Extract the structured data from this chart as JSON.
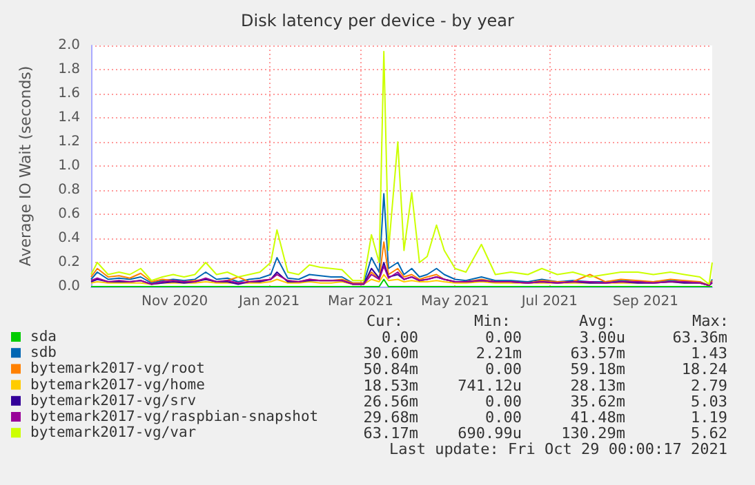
{
  "chart_data": {
    "type": "line",
    "title": "Disk latency per device - by year",
    "ylabel": "Average IO Wait (seconds)",
    "x": [
      "2020-09-22",
      "2020-09-26",
      "2020-10-03",
      "2020-10-10",
      "2020-10-17",
      "2020-10-24",
      "2020-10-31",
      "2020-11-07",
      "2020-11-14",
      "2020-11-21",
      "2020-11-28",
      "2020-12-05",
      "2020-12-12",
      "2020-12-19",
      "2020-12-26",
      "2021-01-02",
      "2021-01-09",
      "2021-01-16",
      "2021-01-20",
      "2021-01-27",
      "2021-02-03",
      "2021-02-10",
      "2021-02-17",
      "2021-02-24",
      "2021-03-03",
      "2021-03-10",
      "2021-03-17",
      "2021-03-22",
      "2021-03-27",
      "2021-03-30",
      "2021-04-02",
      "2021-04-08",
      "2021-04-12",
      "2021-04-17",
      "2021-04-22",
      "2021-04-27",
      "2021-05-03",
      "2021-05-08",
      "2021-05-15",
      "2021-05-22",
      "2021-06-01",
      "2021-06-10",
      "2021-06-20",
      "2021-07-01",
      "2021-07-10",
      "2021-07-20",
      "2021-07-30",
      "2021-08-10",
      "2021-08-20",
      "2021-08-30",
      "2021-09-10",
      "2021-09-20",
      "2021-10-01",
      "2021-10-10",
      "2021-10-20",
      "2021-10-26",
      "2021-10-28"
    ],
    "series": [
      {
        "name": "sda",
        "color": "#00cc00",
        "values": [
          0,
          0,
          0,
          0,
          0,
          0,
          0,
          0,
          0,
          0,
          0,
          0,
          0,
          0,
          0,
          0,
          0,
          0,
          0,
          0,
          0,
          0,
          0,
          0,
          0,
          0,
          0,
          0,
          0,
          0.06,
          0,
          0,
          0,
          0,
          0,
          0,
          0,
          0,
          0,
          0,
          0,
          0,
          0,
          0,
          0,
          0,
          0,
          0,
          0,
          0,
          0,
          0,
          0,
          0,
          0,
          0,
          0
        ]
      },
      {
        "name": "sdb",
        "color": "#0066b3",
        "values": [
          0.06,
          0.12,
          0.06,
          0.07,
          0.06,
          0.08,
          0.03,
          0.05,
          0.06,
          0.05,
          0.06,
          0.12,
          0.06,
          0.07,
          0.04,
          0.06,
          0.07,
          0.1,
          0.24,
          0.07,
          0.06,
          0.1,
          0.09,
          0.08,
          0.08,
          0.03,
          0.03,
          0.24,
          0.12,
          0.77,
          0.15,
          0.2,
          0.1,
          0.15,
          0.08,
          0.1,
          0.15,
          0.1,
          0.06,
          0.05,
          0.08,
          0.05,
          0.05,
          0.04,
          0.06,
          0.04,
          0.05,
          0.04,
          0.04,
          0.05,
          0.04,
          0.04,
          0.05,
          0.04,
          0.04,
          0.01,
          0.06
        ]
      },
      {
        "name": "bytemark2017-vg/root",
        "color": "#ff8000",
        "values": [
          0.08,
          0.15,
          0.08,
          0.09,
          0.07,
          0.11,
          0.04,
          0.06,
          0.05,
          0.04,
          0.05,
          0.06,
          0.04,
          0.05,
          0.08,
          0.04,
          0.05,
          0.06,
          0.1,
          0.05,
          0.04,
          0.06,
          0.05,
          0.05,
          0.06,
          0.03,
          0.03,
          0.12,
          0.06,
          0.37,
          0.1,
          0.15,
          0.08,
          0.1,
          0.06,
          0.08,
          0.1,
          0.06,
          0.04,
          0.04,
          0.06,
          0.04,
          0.04,
          0.03,
          0.05,
          0.04,
          0.04,
          0.1,
          0.04,
          0.06,
          0.05,
          0.04,
          0.06,
          0.05,
          0.04,
          0.01,
          0.05
        ]
      },
      {
        "name": "bytemark2017-vg/home",
        "color": "#ffcc00",
        "values": [
          0.03,
          0.04,
          0.03,
          0.03,
          0.03,
          0.03,
          0.02,
          0.03,
          0.03,
          0.03,
          0.03,
          0.04,
          0.03,
          0.03,
          0.03,
          0.03,
          0.03,
          0.04,
          0.06,
          0.03,
          0.03,
          0.04,
          0.03,
          0.03,
          0.04,
          0.02,
          0.02,
          0.06,
          0.04,
          0.1,
          0.05,
          0.06,
          0.04,
          0.05,
          0.04,
          0.04,
          0.05,
          0.04,
          0.03,
          0.03,
          0.04,
          0.03,
          0.03,
          0.03,
          0.03,
          0.03,
          0.03,
          0.03,
          0.03,
          0.03,
          0.03,
          0.03,
          0.04,
          0.03,
          0.03,
          0.01,
          0.03
        ]
      },
      {
        "name": "bytemark2017-vg/srv",
        "color": "#330099",
        "values": [
          0.04,
          0.06,
          0.04,
          0.04,
          0.04,
          0.05,
          0.02,
          0.03,
          0.04,
          0.03,
          0.04,
          0.06,
          0.04,
          0.04,
          0.02,
          0.04,
          0.04,
          0.06,
          0.12,
          0.04,
          0.04,
          0.05,
          0.05,
          0.05,
          0.05,
          0.02,
          0.02,
          0.15,
          0.07,
          0.2,
          0.08,
          0.1,
          0.06,
          0.08,
          0.05,
          0.06,
          0.08,
          0.06,
          0.04,
          0.04,
          0.05,
          0.04,
          0.04,
          0.03,
          0.04,
          0.03,
          0.04,
          0.03,
          0.03,
          0.04,
          0.03,
          0.03,
          0.04,
          0.03,
          0.03,
          0.01,
          0.03
        ]
      },
      {
        "name": "bytemark2017-vg/raspbian-snapshot",
        "color": "#990099",
        "values": [
          0.05,
          0.07,
          0.04,
          0.05,
          0.04,
          0.05,
          0.02,
          0.04,
          0.05,
          0.04,
          0.04,
          0.07,
          0.04,
          0.05,
          0.03,
          0.04,
          0.05,
          0.06,
          0.1,
          0.05,
          0.04,
          0.06,
          0.05,
          0.05,
          0.05,
          0.02,
          0.02,
          0.1,
          0.06,
          0.17,
          0.07,
          0.12,
          0.06,
          0.08,
          0.05,
          0.06,
          0.08,
          0.06,
          0.04,
          0.04,
          0.05,
          0.04,
          0.04,
          0.03,
          0.04,
          0.03,
          0.04,
          0.04,
          0.03,
          0.04,
          0.04,
          0.03,
          0.04,
          0.04,
          0.03,
          0.01,
          0.04
        ]
      },
      {
        "name": "bytemark2017-vg/var",
        "color": "#ccff00",
        "values": [
          0.1,
          0.2,
          0.1,
          0.12,
          0.1,
          0.15,
          0.05,
          0.08,
          0.1,
          0.08,
          0.1,
          0.2,
          0.1,
          0.12,
          0.08,
          0.1,
          0.12,
          0.2,
          0.47,
          0.12,
          0.1,
          0.18,
          0.16,
          0.15,
          0.14,
          0.05,
          0.05,
          0.43,
          0.2,
          1.95,
          0.3,
          1.2,
          0.3,
          0.78,
          0.2,
          0.25,
          0.51,
          0.3,
          0.15,
          0.12,
          0.35,
          0.1,
          0.12,
          0.1,
          0.15,
          0.1,
          0.12,
          0.08,
          0.1,
          0.12,
          0.12,
          0.1,
          0.12,
          0.1,
          0.08,
          0.02,
          0.2
        ]
      }
    ],
    "xlim": [
      "2020-09-22",
      "2021-10-28"
    ],
    "xticks": [
      {
        "value": "2020-11-15",
        "label": "Nov 2020"
      },
      {
        "value": "2021-01-15",
        "label": "Jan 2021"
      },
      {
        "value": "2021-03-15",
        "label": "Mar 2021"
      },
      {
        "value": "2021-05-15",
        "label": "May 2021"
      },
      {
        "value": "2021-07-15",
        "label": "Jul 2021"
      },
      {
        "value": "2021-09-15",
        "label": "Sep 2021"
      }
    ],
    "ylim": [
      0,
      2.0
    ],
    "yticks": [
      {
        "value": 0,
        "label": "0.0"
      },
      {
        "value": 0.2,
        "label": "0.2"
      },
      {
        "value": 0.4,
        "label": "0.4"
      },
      {
        "value": 0.6,
        "label": "0.6"
      },
      {
        "value": 0.8,
        "label": "0.8"
      },
      {
        "value": 1.0,
        "label": "1.0"
      },
      {
        "value": 1.2,
        "label": "1.2"
      },
      {
        "value": 1.4,
        "label": "1.4"
      },
      {
        "value": 1.6,
        "label": "1.6"
      },
      {
        "value": 1.8,
        "label": "1.8"
      },
      {
        "value": 2.0,
        "label": "2.0"
      }
    ],
    "grid": true,
    "legend": "bottom",
    "marker": "none",
    "annotations": [
      "Cur:",
      "Min:",
      "Avg:",
      "Max:",
      "0.00",
      "0.00",
      "3.00u",
      "63.36m",
      "30.60m",
      "2.21m",
      "63.57m",
      "1.43",
      "50.84m",
      "0.00",
      "59.18m",
      "18.24",
      "18.53m",
      "741.12u",
      "28.13m",
      "2.79",
      "26.56m",
      "0.00",
      "35.62m",
      "5.03",
      "29.68m",
      "0.00",
      "41.48m",
      "1.19",
      "63.17m",
      "690.99u",
      "130.29m",
      "5.62",
      "Last update: Fri Oct 29 00:00:17 2021"
    ]
  }
}
